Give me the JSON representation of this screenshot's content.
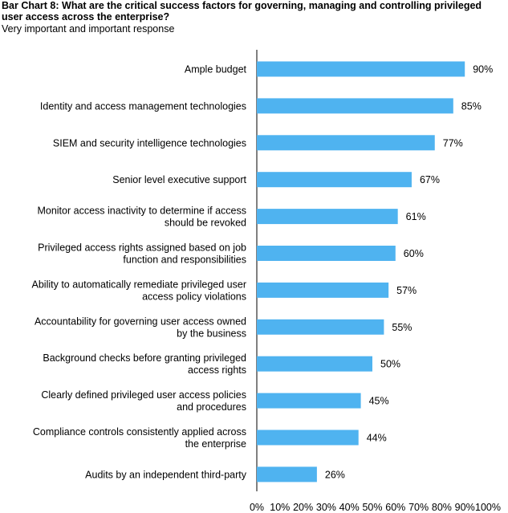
{
  "title": "Bar Chart 8:  What are the critical success factors for governing, managing and controlling privileged user access across the enterprise?",
  "subtitle": "Very important and important response",
  "chart_data": {
    "type": "bar",
    "orientation": "horizontal",
    "categories": [
      [
        "Ample budget"
      ],
      [
        "Identity and access management technologies"
      ],
      [
        "SIEM and security intelligence technologies"
      ],
      [
        "Senior level executive support"
      ],
      [
        "Monitor access inactivity to determine if access",
        "should be revoked"
      ],
      [
        "Privileged access rights assigned based on  job",
        "function and responsibilities"
      ],
      [
        "Ability to automatically remediate privileged user",
        "access policy violations"
      ],
      [
        "Accountability for governing user access owned",
        "by the business"
      ],
      [
        "Background checks before granting privileged",
        "access rights"
      ],
      [
        "Clearly defined privileged user access policies",
        "and procedures"
      ],
      [
        "Compliance controls consistently applied across",
        "the enterprise"
      ],
      [
        "Audits by an independent third-party"
      ]
    ],
    "values": [
      90,
      85,
      77,
      67,
      61,
      60,
      57,
      55,
      50,
      45,
      44,
      26
    ],
    "value_labels": [
      "90%",
      "85%",
      "77%",
      "67%",
      "61%",
      "60%",
      "57%",
      "55%",
      "50%",
      "45%",
      "44%",
      "26%"
    ],
    "xlim": [
      0,
      100
    ],
    "x_ticks": [
      "0%",
      "10%",
      "20%",
      "30%",
      "40%",
      "50%",
      "60%",
      "70%",
      "80%",
      "90%",
      "100%"
    ],
    "bar_color": "#4FB3F0",
    "grid": false,
    "legend": "none"
  }
}
